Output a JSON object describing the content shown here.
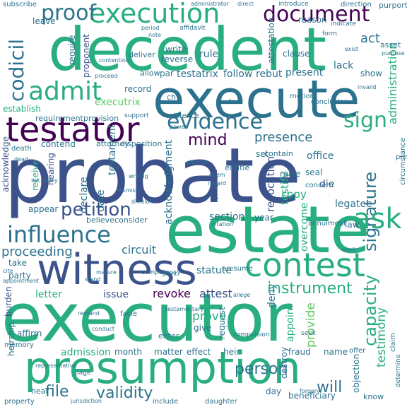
{
  "colors": {
    "dark_purple": "#440154",
    "purple": "#472d7b",
    "indigo": "#3b528b",
    "slate_blue": "#2c728e",
    "teal": "#21918c",
    "sea_green": "#28ae80",
    "green": "#5ec962",
    "light_green": "#addc30",
    "yellow": "#fde725"
  },
  "words": [
    {
      "text": "probate"
    },
    {
      "text": "executor"
    },
    {
      "text": "decedent"
    },
    {
      "text": "estate"
    },
    {
      "text": "execute"
    },
    {
      "text": "presumption"
    },
    {
      "text": "witness"
    },
    {
      "text": "testator"
    },
    {
      "text": "contest"
    },
    {
      "text": "influence"
    },
    {
      "text": "execution"
    },
    {
      "text": "admit"
    },
    {
      "text": "evidence"
    },
    {
      "text": "document"
    },
    {
      "text": "proof"
    },
    {
      "text": "codicil"
    },
    {
      "text": "sign"
    },
    {
      "text": "petition"
    },
    {
      "text": "instrument"
    },
    {
      "text": "signature"
    },
    {
      "text": "capacity"
    },
    {
      "text": "validity"
    },
    {
      "text": "person"
    },
    {
      "text": "will"
    },
    {
      "text": "mind"
    },
    {
      "text": "file"
    },
    {
      "text": "proceeding"
    },
    {
      "text": "testimony"
    },
    {
      "text": "presence"
    },
    {
      "text": "testament"
    },
    {
      "text": "executrix"
    },
    {
      "text": "administration"
    },
    {
      "text": "acknowledgment"
    },
    {
      "text": "revoke"
    },
    {
      "text": "attest"
    },
    {
      "text": "circuit"
    },
    {
      "text": "ask"
    },
    {
      "text": "statute"
    },
    {
      "text": "prove"
    },
    {
      "text": "letter"
    },
    {
      "text": "issue"
    },
    {
      "text": "admission"
    },
    {
      "text": "month"
    },
    {
      "text": "matter"
    },
    {
      "text": "effect"
    },
    {
      "text": "heir"
    },
    {
      "text": "fraud"
    },
    {
      "text": "name"
    },
    {
      "text": "revocation"
    },
    {
      "text": "testify"
    },
    {
      "text": "declare"
    },
    {
      "text": "date"
    },
    {
      "text": "copy"
    },
    {
      "text": "legatee"
    },
    {
      "text": "die"
    },
    {
      "text": "provide"
    },
    {
      "text": "appoint"
    },
    {
      "text": "deny"
    },
    {
      "text": "overcome"
    },
    {
      "text": "section"
    },
    {
      "text": "year"
    },
    {
      "text": "law"
    },
    {
      "text": "establish"
    },
    {
      "text": "contend"
    },
    {
      "text": "present"
    },
    {
      "text": "follow"
    },
    {
      "text": "rebut"
    },
    {
      "text": "lack"
    },
    {
      "text": "show"
    },
    {
      "text": "act"
    },
    {
      "text": "reason"
    },
    {
      "text": "rule"
    },
    {
      "text": "write"
    },
    {
      "text": "reverse"
    },
    {
      "text": "deliver"
    },
    {
      "text": "record"
    },
    {
      "text": "testatrix"
    },
    {
      "text": "par"
    },
    {
      "text": "allow"
    },
    {
      "text": "require"
    },
    {
      "text": "proponent"
    },
    {
      "text": "leave"
    },
    {
      "text": "subscribe"
    },
    {
      "text": "clause"
    },
    {
      "text": "attestation"
    },
    {
      "text": "motion"
    },
    {
      "text": "contain"
    },
    {
      "text": "set"
    },
    {
      "text": "office"
    },
    {
      "text": "seal"
    },
    {
      "text": "raise"
    },
    {
      "text": "entitle"
    },
    {
      "text": "prepare"
    },
    {
      "text": "attorney"
    },
    {
      "text": "disposition"
    },
    {
      "text": "acknowledge"
    },
    {
      "text": "appear"
    },
    {
      "text": "receive"
    },
    {
      "text": "hearing"
    },
    {
      "text": "believe"
    },
    {
      "text": "consider"
    },
    {
      "text": "take"
    },
    {
      "text": "party"
    },
    {
      "text": "burden"
    },
    {
      "text": "affirm"
    },
    {
      "text": "memory"
    },
    {
      "text": "heirship"
    },
    {
      "text": "hear"
    },
    {
      "text": "property"
    },
    {
      "text": "give"
    },
    {
      "text": "request"
    },
    {
      "text": "enter"
    },
    {
      "text": "destroy"
    },
    {
      "text": "beneficiary"
    },
    {
      "text": "day"
    },
    {
      "text": "objection"
    },
    {
      "text": "know"
    },
    {
      "text": "claim"
    },
    {
      "text": "determine"
    },
    {
      "text": "presume"
    },
    {
      "text": "circumstance"
    },
    {
      "text": "asset"
    },
    {
      "text": "purport"
    },
    {
      "text": "direction"
    },
    {
      "text": "introduce"
    },
    {
      "text": "administrator"
    },
    {
      "text": "direct"
    },
    {
      "text": "affidavit"
    },
    {
      "text": "period"
    },
    {
      "text": "note"
    },
    {
      "text": "indicate"
    },
    {
      "text": "form"
    },
    {
      "text": "conclusion"
    },
    {
      "text": "provision"
    },
    {
      "text": "requirement"
    },
    {
      "text": "support"
    },
    {
      "text": "existence"
    },
    {
      "text": "death"
    },
    {
      "text": "concern"
    },
    {
      "text": "annulment"
    },
    {
      "text": "competency"
    },
    {
      "text": "compulsion"
    },
    {
      "text": "daughter"
    },
    {
      "text": "include"
    },
    {
      "text": "page"
    },
    {
      "text": "seek"
    },
    {
      "text": "offer"
    },
    {
      "text": "prima"
    },
    {
      "text": "facie"
    },
    {
      "text": "remand"
    },
    {
      "text": "conduct"
    },
    {
      "text": "stand"
    },
    {
      "text": "secretary"
    },
    {
      "text": "writing"
    },
    {
      "text": "regard"
    },
    {
      "text": "deem"
    },
    {
      "text": "change"
    },
    {
      "text": "power"
    },
    {
      "text": "favor"
    },
    {
      "text": "exist"
    },
    {
      "text": "contention"
    },
    {
      "text": "proceed"
    },
    {
      "text": "division"
    },
    {
      "text": "mature"
    },
    {
      "text": "point"
    },
    {
      "text": "shall"
    },
    {
      "text": "citation"
    },
    {
      "text": "allege"
    },
    {
      "text": "representative"
    },
    {
      "text": "appointment"
    },
    {
      "text": "cite"
    },
    {
      "text": "testamentary"
    },
    {
      "text": "jurisdiction"
    },
    {
      "text": "ch"
    },
    {
      "text": "dismiss"
    },
    {
      "text": "forgery"
    },
    {
      "text": "purpose"
    },
    {
      "text": "invalid"
    },
    {
      "text": "dead"
    }
  ]
}
